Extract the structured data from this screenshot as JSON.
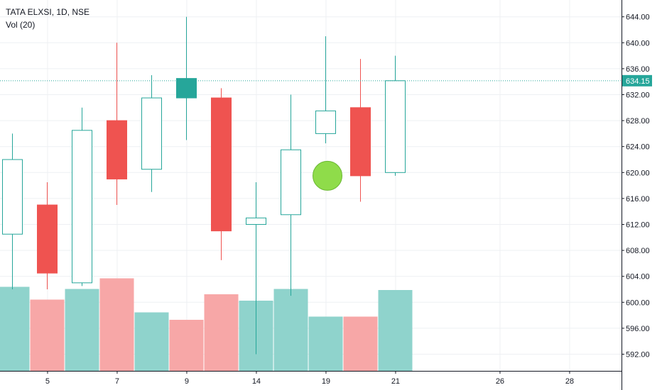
{
  "header": {
    "symbol_line": "TATA ELXSI, 1D, NSE",
    "volume_label": "Vol (20)"
  },
  "colors": {
    "up": "#26a69a",
    "down": "#ef5350",
    "volume_up": "#8fd3cc",
    "volume_down": "#f7a7a7",
    "marker": "#8fdc4a",
    "grid": "#eef0f3",
    "axis": "#131722"
  },
  "chart_data": {
    "type": "candlestick",
    "title": "TATA ELXSI, 1D, NSE",
    "indicator": "Vol (20)",
    "ylim": [
      590,
      646
    ],
    "y_ticks": [
      "592.00",
      "596.00",
      "600.00",
      "604.00",
      "608.00",
      "612.00",
      "616.00",
      "620.00",
      "624.00",
      "628.00",
      "632.00",
      "636.00",
      "640.00",
      "644.00"
    ],
    "x_ticks": [
      "5",
      "7",
      "9",
      "14",
      "19",
      "21",
      "26",
      "28"
    ],
    "last_price": "634.15",
    "candles": [
      {
        "open": 610.5,
        "high": 626.0,
        "low": 602.0,
        "close": 622.0,
        "hollow": true
      },
      {
        "open": 615.0,
        "high": 618.5,
        "low": 602.0,
        "close": 604.5,
        "hollow": false
      },
      {
        "open": 603.0,
        "high": 630.0,
        "low": 602.5,
        "close": 626.5,
        "hollow": true
      },
      {
        "open": 628.0,
        "high": 640.0,
        "low": 615.0,
        "close": 619.0,
        "hollow": false
      },
      {
        "open": 620.5,
        "high": 635.0,
        "low": 617.0,
        "close": 631.5,
        "hollow": true
      },
      {
        "open": 631.5,
        "high": 644.0,
        "low": 625.0,
        "close": 634.5,
        "hollow": false
      },
      {
        "open": 631.5,
        "high": 633.0,
        "low": 606.5,
        "close": 611.0,
        "hollow": false
      },
      {
        "open": 612.0,
        "high": 618.5,
        "low": 592.0,
        "close": 613.0,
        "hollow": true
      },
      {
        "open": 613.5,
        "high": 632.0,
        "low": 601.0,
        "close": 623.5,
        "hollow": true
      },
      {
        "open": 626.0,
        "high": 641.0,
        "low": 624.5,
        "close": 629.5,
        "hollow": true
      },
      {
        "open": 630.0,
        "high": 637.5,
        "low": 615.5,
        "close": 619.5,
        "hollow": false
      },
      {
        "open": 620.0,
        "high": 638.0,
        "low": 619.5,
        "close": 634.15,
        "hollow": true
      }
    ],
    "volumes": [
      {
        "level": 0.79,
        "up": true
      },
      {
        "level": 0.67,
        "up": false
      },
      {
        "level": 0.77,
        "up": true
      },
      {
        "level": 0.87,
        "up": false
      },
      {
        "level": 0.55,
        "up": true
      },
      {
        "level": 0.48,
        "up": false
      },
      {
        "level": 0.72,
        "up": false
      },
      {
        "level": 0.66,
        "up": true
      },
      {
        "level": 0.77,
        "up": true
      },
      {
        "level": 0.51,
        "up": true
      },
      {
        "level": 0.51,
        "up": false
      },
      {
        "level": 0.76,
        "up": true
      }
    ],
    "marker": {
      "price": 619.5,
      "slot": 9.5
    }
  }
}
